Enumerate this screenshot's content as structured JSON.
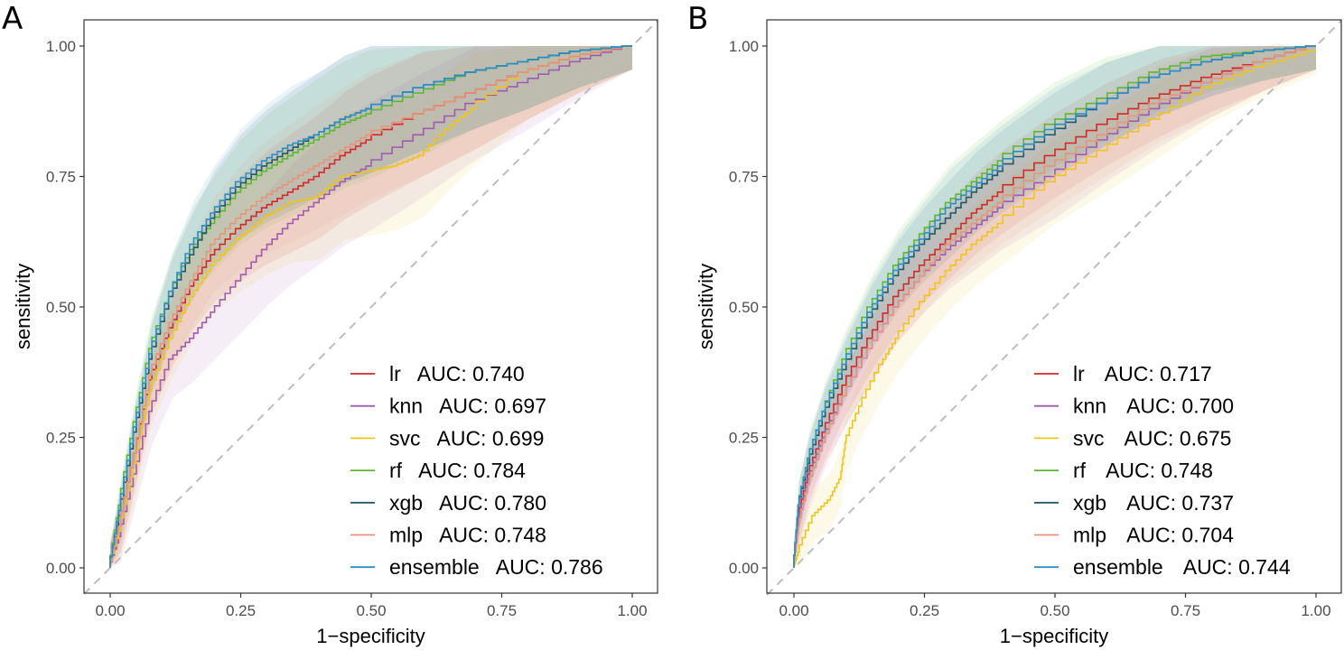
{
  "chart_data": [
    {
      "type": "line",
      "panel": "A",
      "xlabel": "1−specificity",
      "ylabel": "sensitivity",
      "xlim": [
        0,
        1
      ],
      "ylim": [
        0,
        1
      ],
      "x_ticks": [
        "0.00",
        "0.25",
        "0.50",
        "0.75",
        "1.00"
      ],
      "y_ticks": [
        "0.00",
        "0.25",
        "0.50",
        "0.75",
        "1.00"
      ],
      "diagonal": true,
      "confidence_bands": true,
      "legend_position": "bottom-right",
      "series": [
        {
          "name": "lr",
          "auc_label": "AUC: 0.740",
          "color": "#d62728",
          "points": [
            [
              0,
              0
            ],
            [
              0.02,
              0.08
            ],
            [
              0.05,
              0.22
            ],
            [
              0.08,
              0.36
            ],
            [
              0.12,
              0.46
            ],
            [
              0.16,
              0.54
            ],
            [
              0.2,
              0.6
            ],
            [
              0.25,
              0.65
            ],
            [
              0.3,
              0.69
            ],
            [
              0.35,
              0.72
            ],
            [
              0.4,
              0.75
            ],
            [
              0.45,
              0.79
            ],
            [
              0.5,
              0.82
            ],
            [
              0.6,
              0.87
            ],
            [
              0.7,
              0.91
            ],
            [
              0.8,
              0.95
            ],
            [
              0.9,
              0.98
            ],
            [
              1,
              1
            ]
          ]
        },
        {
          "name": "knn",
          "auc_label": "AUC: 0.697",
          "color": "#a05bb0",
          "points": [
            [
              0,
              0
            ],
            [
              0.02,
              0.06
            ],
            [
              0.05,
              0.18
            ],
            [
              0.08,
              0.3
            ],
            [
              0.12,
              0.4
            ],
            [
              0.16,
              0.44
            ],
            [
              0.2,
              0.49
            ],
            [
              0.25,
              0.55
            ],
            [
              0.3,
              0.61
            ],
            [
              0.35,
              0.66
            ],
            [
              0.4,
              0.7
            ],
            [
              0.45,
              0.74
            ],
            [
              0.5,
              0.77
            ],
            [
              0.6,
              0.83
            ],
            [
              0.7,
              0.89
            ],
            [
              0.8,
              0.93
            ],
            [
              0.9,
              0.97
            ],
            [
              1,
              1
            ]
          ]
        },
        {
          "name": "svc",
          "auc_label": "AUC: 0.699",
          "color": "#f0c419",
          "points": [
            [
              0,
              0
            ],
            [
              0.02,
              0.07
            ],
            [
              0.05,
              0.2
            ],
            [
              0.08,
              0.34
            ],
            [
              0.12,
              0.44
            ],
            [
              0.16,
              0.52
            ],
            [
              0.2,
              0.58
            ],
            [
              0.25,
              0.63
            ],
            [
              0.3,
              0.67
            ],
            [
              0.35,
              0.7
            ],
            [
              0.4,
              0.71
            ],
            [
              0.45,
              0.75
            ],
            [
              0.5,
              0.76
            ],
            [
              0.55,
              0.77
            ],
            [
              0.6,
              0.79
            ],
            [
              0.65,
              0.84
            ],
            [
              0.7,
              0.88
            ],
            [
              0.8,
              0.95
            ],
            [
              0.9,
              0.98
            ],
            [
              1,
              1
            ]
          ]
        },
        {
          "name": "rf",
          "auc_label": "AUC: 0.784",
          "color": "#5cb82e",
          "points": [
            [
              0,
              0
            ],
            [
              0.02,
              0.12
            ],
            [
              0.05,
              0.28
            ],
            [
              0.08,
              0.42
            ],
            [
              0.12,
              0.53
            ],
            [
              0.16,
              0.61
            ],
            [
              0.2,
              0.66
            ],
            [
              0.25,
              0.72
            ],
            [
              0.3,
              0.76
            ],
            [
              0.35,
              0.79
            ],
            [
              0.4,
              0.82
            ],
            [
              0.45,
              0.85
            ],
            [
              0.5,
              0.87
            ],
            [
              0.6,
              0.91
            ],
            [
              0.7,
              0.95
            ],
            [
              0.8,
              0.97
            ],
            [
              0.9,
              0.99
            ],
            [
              1,
              1
            ]
          ]
        },
        {
          "name": "xgb",
          "auc_label": "AUC: 0.780",
          "color": "#1f5a66",
          "points": [
            [
              0,
              0
            ],
            [
              0.02,
              0.1
            ],
            [
              0.05,
              0.26
            ],
            [
              0.08,
              0.4
            ],
            [
              0.12,
              0.52
            ],
            [
              0.16,
              0.6
            ],
            [
              0.2,
              0.67
            ],
            [
              0.25,
              0.73
            ],
            [
              0.3,
              0.77
            ],
            [
              0.35,
              0.8
            ],
            [
              0.4,
              0.83
            ],
            [
              0.45,
              0.86
            ],
            [
              0.5,
              0.88
            ],
            [
              0.6,
              0.92
            ],
            [
              0.7,
              0.95
            ],
            [
              0.8,
              0.97
            ],
            [
              0.9,
              0.99
            ],
            [
              1,
              1
            ]
          ]
        },
        {
          "name": "mlp",
          "auc_label": "AUC: 0.748",
          "color": "#e8937a",
          "points": [
            [
              0,
              0
            ],
            [
              0.02,
              0.08
            ],
            [
              0.05,
              0.22
            ],
            [
              0.08,
              0.37
            ],
            [
              0.12,
              0.47
            ],
            [
              0.16,
              0.55
            ],
            [
              0.2,
              0.62
            ],
            [
              0.25,
              0.67
            ],
            [
              0.3,
              0.71
            ],
            [
              0.35,
              0.74
            ],
            [
              0.4,
              0.77
            ],
            [
              0.45,
              0.8
            ],
            [
              0.5,
              0.83
            ],
            [
              0.6,
              0.87
            ],
            [
              0.7,
              0.91
            ],
            [
              0.8,
              0.95
            ],
            [
              0.9,
              0.98
            ],
            [
              1,
              1
            ]
          ]
        },
        {
          "name": "ensemble",
          "auc_label": "AUC: 0.786",
          "color": "#2b8fc7",
          "points": [
            [
              0,
              0
            ],
            [
              0.02,
              0.11
            ],
            [
              0.05,
              0.27
            ],
            [
              0.08,
              0.41
            ],
            [
              0.12,
              0.53
            ],
            [
              0.16,
              0.62
            ],
            [
              0.2,
              0.68
            ],
            [
              0.25,
              0.74
            ],
            [
              0.3,
              0.78
            ],
            [
              0.35,
              0.81
            ],
            [
              0.4,
              0.83
            ],
            [
              0.45,
              0.86
            ],
            [
              0.5,
              0.88
            ],
            [
              0.6,
              0.92
            ],
            [
              0.7,
              0.95
            ],
            [
              0.8,
              0.97
            ],
            [
              0.9,
              0.99
            ],
            [
              1,
              1
            ]
          ]
        }
      ]
    },
    {
      "type": "line",
      "panel": "B",
      "xlabel": "1−specificity",
      "ylabel": "sensitivity",
      "xlim": [
        0,
        1
      ],
      "ylim": [
        0,
        1
      ],
      "x_ticks": [
        "0.00",
        "0.25",
        "0.50",
        "0.75",
        "1.00"
      ],
      "y_ticks": [
        "0.00",
        "0.25",
        "0.50",
        "0.75",
        "1.00"
      ],
      "diagonal": true,
      "confidence_bands": true,
      "legend_position": "bottom-right",
      "series": [
        {
          "name": "lr",
          "auc_label": "AUC: 0.717",
          "color": "#d62728",
          "points": [
            [
              0,
              0
            ],
            [
              0.01,
              0.1
            ],
            [
              0.03,
              0.18
            ],
            [
              0.06,
              0.26
            ],
            [
              0.1,
              0.35
            ],
            [
              0.15,
              0.44
            ],
            [
              0.2,
              0.52
            ],
            [
              0.25,
              0.58
            ],
            [
              0.3,
              0.63
            ],
            [
              0.35,
              0.68
            ],
            [
              0.4,
              0.72
            ],
            [
              0.5,
              0.79
            ],
            [
              0.6,
              0.85
            ],
            [
              0.7,
              0.9
            ],
            [
              0.8,
              0.94
            ],
            [
              0.9,
              0.97
            ],
            [
              1,
              1
            ]
          ]
        },
        {
          "name": "knn",
          "auc_label": "AUC: 0.700",
          "color": "#a05bb0",
          "points": [
            [
              0,
              0
            ],
            [
              0.01,
              0.09
            ],
            [
              0.03,
              0.17
            ],
            [
              0.06,
              0.25
            ],
            [
              0.1,
              0.33
            ],
            [
              0.15,
              0.42
            ],
            [
              0.2,
              0.5
            ],
            [
              0.25,
              0.56
            ],
            [
              0.3,
              0.61
            ],
            [
              0.35,
              0.65
            ],
            [
              0.4,
              0.69
            ],
            [
              0.5,
              0.75
            ],
            [
              0.6,
              0.82
            ],
            [
              0.7,
              0.88
            ],
            [
              0.8,
              0.93
            ],
            [
              0.9,
              0.97
            ],
            [
              1,
              1
            ]
          ]
        },
        {
          "name": "svc",
          "auc_label": "AUC: 0.675",
          "color": "#f0c419",
          "points": [
            [
              0,
              0
            ],
            [
              0.01,
              0.03
            ],
            [
              0.04,
              0.1
            ],
            [
              0.07,
              0.13
            ],
            [
              0.09,
              0.17
            ],
            [
              0.1,
              0.24
            ],
            [
              0.13,
              0.31
            ],
            [
              0.17,
              0.39
            ],
            [
              0.2,
              0.44
            ],
            [
              0.25,
              0.51
            ],
            [
              0.3,
              0.57
            ],
            [
              0.35,
              0.62
            ],
            [
              0.4,
              0.66
            ],
            [
              0.5,
              0.74
            ],
            [
              0.6,
              0.8
            ],
            [
              0.7,
              0.86
            ],
            [
              0.8,
              0.92
            ],
            [
              0.9,
              0.96
            ],
            [
              1,
              0.99
            ]
          ]
        },
        {
          "name": "rf",
          "auc_label": "AUC: 0.748",
          "color": "#5cb82e",
          "points": [
            [
              0,
              0
            ],
            [
              0.01,
              0.12
            ],
            [
              0.03,
              0.21
            ],
            [
              0.06,
              0.3
            ],
            [
              0.1,
              0.4
            ],
            [
              0.15,
              0.5
            ],
            [
              0.2,
              0.58
            ],
            [
              0.25,
              0.64
            ],
            [
              0.3,
              0.7
            ],
            [
              0.35,
              0.74
            ],
            [
              0.4,
              0.78
            ],
            [
              0.5,
              0.85
            ],
            [
              0.6,
              0.9
            ],
            [
              0.7,
              0.95
            ],
            [
              0.8,
              0.98
            ],
            [
              0.9,
              0.99
            ],
            [
              1,
              1
            ]
          ]
        },
        {
          "name": "xgb",
          "auc_label": "AUC: 0.737",
          "color": "#1f5a66",
          "points": [
            [
              0,
              0
            ],
            [
              0.01,
              0.12
            ],
            [
              0.03,
              0.2
            ],
            [
              0.06,
              0.29
            ],
            [
              0.1,
              0.38
            ],
            [
              0.15,
              0.48
            ],
            [
              0.2,
              0.56
            ],
            [
              0.25,
              0.62
            ],
            [
              0.3,
              0.67
            ],
            [
              0.35,
              0.72
            ],
            [
              0.4,
              0.76
            ],
            [
              0.5,
              0.83
            ],
            [
              0.6,
              0.89
            ],
            [
              0.7,
              0.94
            ],
            [
              0.8,
              0.97
            ],
            [
              0.9,
              0.99
            ],
            [
              1,
              1
            ]
          ]
        },
        {
          "name": "mlp",
          "auc_label": "AUC: 0.704",
          "color": "#e8937a",
          "points": [
            [
              0,
              0
            ],
            [
              0.01,
              0.08
            ],
            [
              0.03,
              0.16
            ],
            [
              0.06,
              0.24
            ],
            [
              0.1,
              0.33
            ],
            [
              0.15,
              0.42
            ],
            [
              0.2,
              0.5
            ],
            [
              0.25,
              0.56
            ],
            [
              0.3,
              0.62
            ],
            [
              0.35,
              0.66
            ],
            [
              0.4,
              0.7
            ],
            [
              0.5,
              0.77
            ],
            [
              0.6,
              0.83
            ],
            [
              0.7,
              0.89
            ],
            [
              0.8,
              0.93
            ],
            [
              0.9,
              0.97
            ],
            [
              1,
              1
            ]
          ]
        },
        {
          "name": "ensemble",
          "auc_label": "AUC: 0.744",
          "color": "#2b8fc7",
          "points": [
            [
              0,
              0
            ],
            [
              0.01,
              0.12
            ],
            [
              0.03,
              0.21
            ],
            [
              0.06,
              0.3
            ],
            [
              0.1,
              0.39
            ],
            [
              0.15,
              0.49
            ],
            [
              0.2,
              0.57
            ],
            [
              0.25,
              0.63
            ],
            [
              0.3,
              0.69
            ],
            [
              0.35,
              0.73
            ],
            [
              0.4,
              0.77
            ],
            [
              0.5,
              0.84
            ],
            [
              0.6,
              0.89
            ],
            [
              0.7,
              0.94
            ],
            [
              0.8,
              0.97
            ],
            [
              0.9,
              0.99
            ],
            [
              1,
              1
            ]
          ]
        }
      ]
    }
  ]
}
